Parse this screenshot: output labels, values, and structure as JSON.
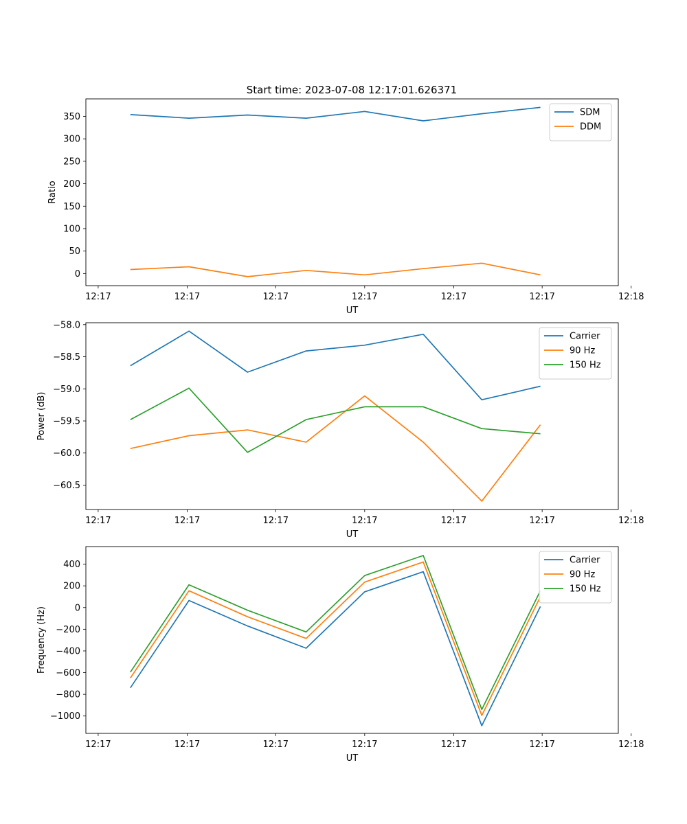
{
  "figure_title": "Start time: 2023-07-08 12:17:01.626371",
  "colors": {
    "blue": "#1f77b4",
    "orange": "#ff7f0e",
    "green": "#2ca02c"
  },
  "chart_data": [
    {
      "type": "line",
      "title": "Start time: 2023-07-08 12:17:01.626371",
      "xlabel": "UT",
      "ylabel": "Ratio",
      "x": [
        1,
        2,
        3,
        4,
        5,
        6,
        7,
        8
      ],
      "xlim": [
        0.24,
        9.33
      ],
      "xticks": [
        0.45,
        1.97,
        3.48,
        5.0,
        6.52,
        8.03,
        9.55
      ],
      "xtick_labels": [
        "12:17",
        "12:17",
        "12:17",
        "12:17",
        "12:17",
        "12:17",
        "12:18"
      ],
      "ylim": [
        -27,
        389
      ],
      "yticks": [
        0,
        50,
        100,
        150,
        200,
        250,
        300,
        350
      ],
      "ytick_labels": [
        "0",
        "50",
        "100",
        "150",
        "200",
        "250",
        "300",
        "350"
      ],
      "legend_position": "top-right",
      "series": [
        {
          "name": "SDM",
          "color": "#1f77b4",
          "values": [
            354,
            346,
            353,
            346,
            361,
            340,
            356,
            370
          ]
        },
        {
          "name": "DDM",
          "color": "#ff7f0e",
          "values": [
            9,
            15,
            -7,
            7,
            -3,
            11,
            23,
            -3
          ]
        }
      ]
    },
    {
      "type": "line",
      "title": "",
      "xlabel": "UT",
      "ylabel": "Power (dB)",
      "x": [
        1,
        2,
        3,
        4,
        5,
        6,
        7,
        8
      ],
      "xlim": [
        0.24,
        9.33
      ],
      "xticks": [
        0.45,
        1.97,
        3.48,
        5.0,
        6.52,
        8.03,
        9.55
      ],
      "xtick_labels": [
        "12:17",
        "12:17",
        "12:17",
        "12:17",
        "12:17",
        "12:17",
        "12:18"
      ],
      "ylim": [
        -60.88,
        -57.97
      ],
      "yticks": [
        -60.5,
        -60.0,
        -59.5,
        -59.0,
        -58.5,
        -58.0
      ],
      "ytick_labels": [
        "−60.5",
        "−60.0",
        "−59.5",
        "−59.0",
        "−58.5",
        "−58.0"
      ],
      "legend_position": "top-right",
      "series": [
        {
          "name": "Carrier",
          "color": "#1f77b4",
          "values": [
            -58.64,
            -58.1,
            -58.74,
            -58.41,
            -58.32,
            -58.15,
            -59.17,
            -58.96
          ]
        },
        {
          "name": "90 Hz",
          "color": "#ff7f0e",
          "values": [
            -59.93,
            -59.73,
            -59.64,
            -59.83,
            -59.11,
            -59.83,
            -60.75,
            -59.56
          ]
        },
        {
          "name": "150 Hz",
          "color": "#2ca02c",
          "values": [
            -59.48,
            -58.99,
            -59.99,
            -59.48,
            -59.28,
            -59.28,
            -59.62,
            -59.7
          ]
        }
      ]
    },
    {
      "type": "line",
      "title": "",
      "xlabel": "UT",
      "ylabel": "Frequency (Hz)",
      "x": [
        1,
        2,
        3,
        4,
        5,
        6,
        7,
        8
      ],
      "xlim": [
        0.24,
        9.33
      ],
      "xticks": [
        0.45,
        1.97,
        3.48,
        5.0,
        6.52,
        8.03,
        9.55
      ],
      "xtick_labels": [
        "12:17",
        "12:17",
        "12:17",
        "12:17",
        "12:17",
        "12:17",
        "12:18"
      ],
      "ylim": [
        -1160,
        562
      ],
      "yticks": [
        -1000,
        -800,
        -600,
        -400,
        -200,
        0,
        200,
        400
      ],
      "ytick_labels": [
        "−1000",
        "−800",
        "−600",
        "−400",
        "−200",
        "0",
        "200",
        "400"
      ],
      "legend_position": "top-right",
      "series": [
        {
          "name": "Carrier",
          "color": "#1f77b4",
          "values": [
            -740,
            65,
            -170,
            -375,
            145,
            330,
            -1090,
            10
          ]
        },
        {
          "name": "90 Hz",
          "color": "#ff7f0e",
          "values": [
            -650,
            155,
            -85,
            -285,
            235,
            420,
            -995,
            100
          ]
        },
        {
          "name": "150 Hz",
          "color": "#2ca02c",
          "values": [
            -595,
            210,
            -25,
            -225,
            295,
            480,
            -940,
            155
          ]
        }
      ]
    }
  ]
}
